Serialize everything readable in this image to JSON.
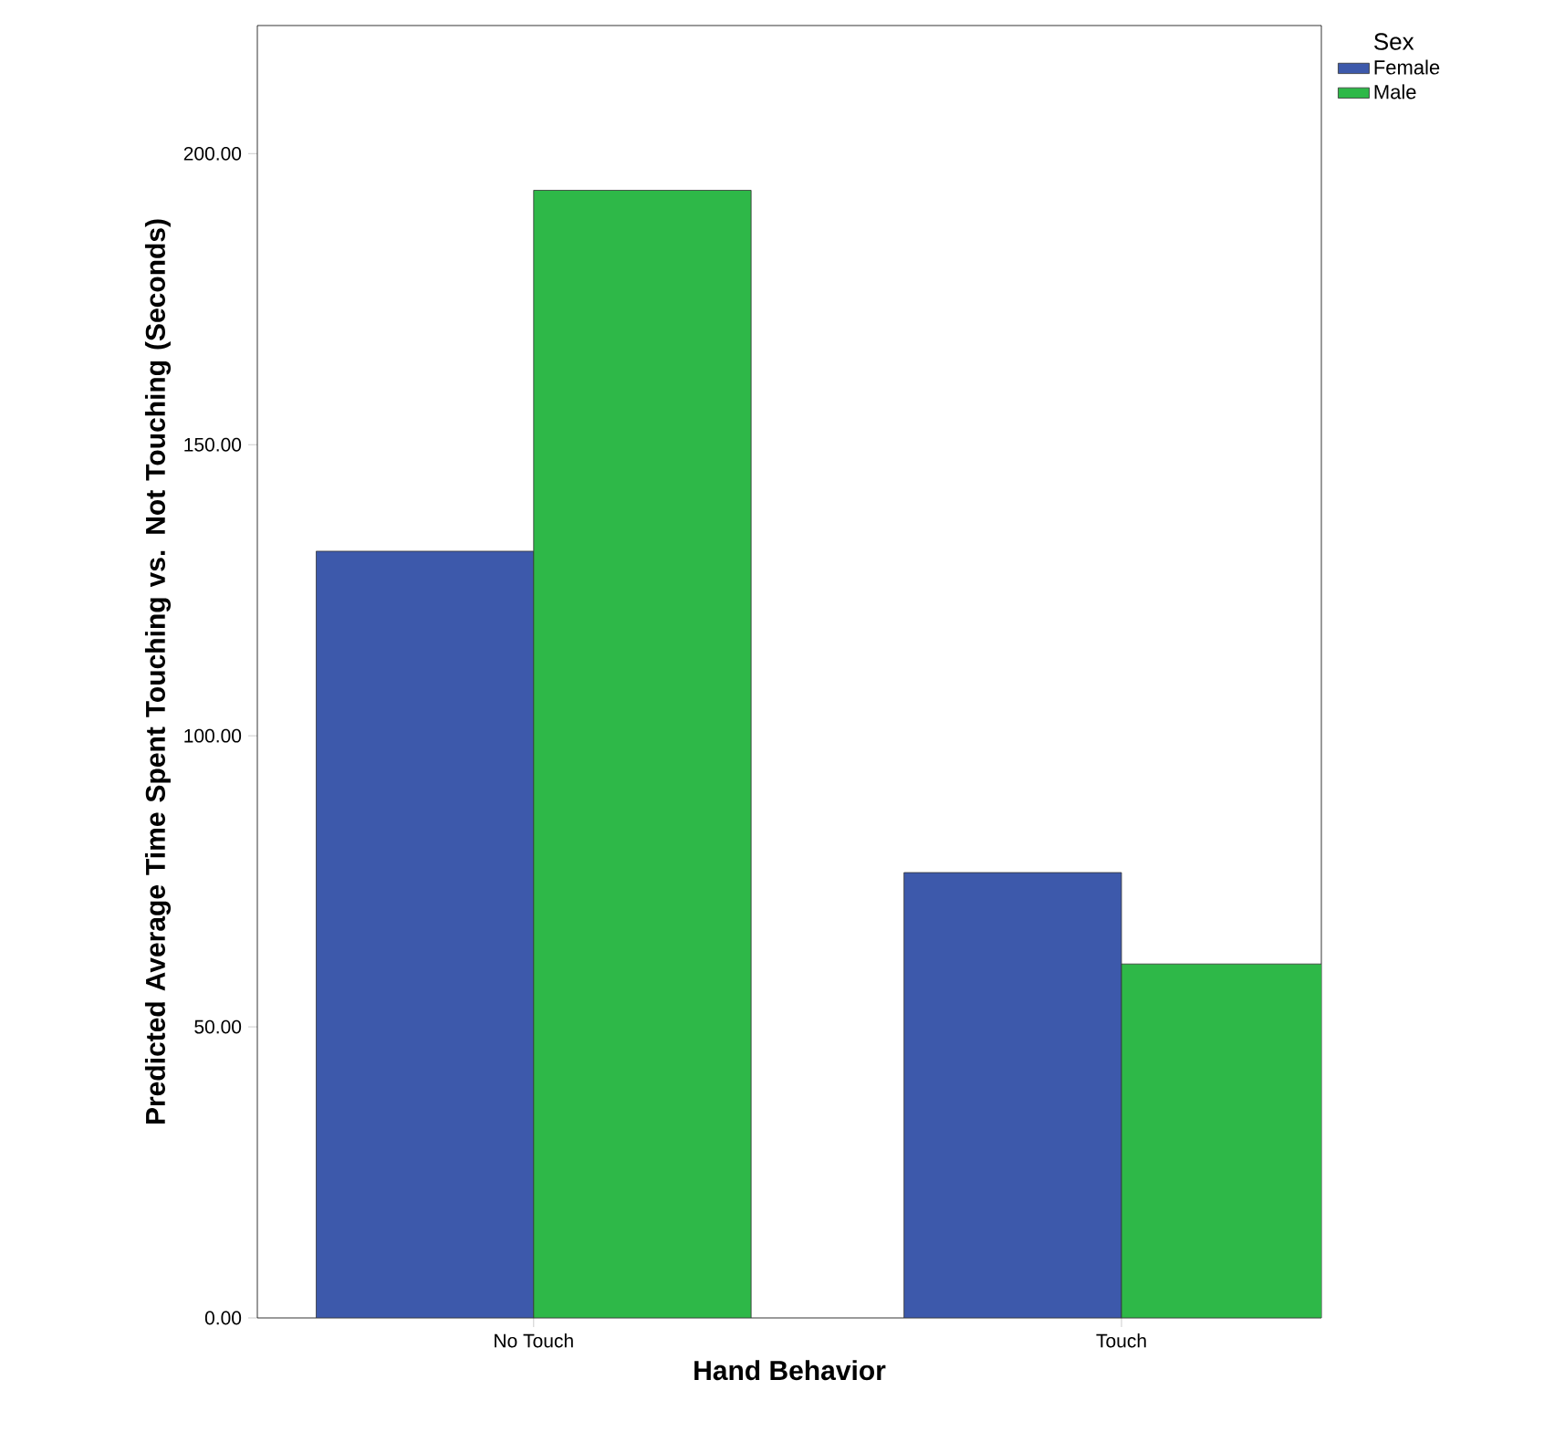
{
  "chart_data": {
    "type": "bar",
    "xlabel": "Hand Behavior",
    "ylabel": "Predicted Average Time Spent Touching vs. Not Touching (Seconds)",
    "legend_title": "Sex",
    "categories": [
      "No Touch",
      "Touch"
    ],
    "series": [
      {
        "name": "Female",
        "color": "#3d59ab",
        "values": [
          131.7,
          76.5
        ]
      },
      {
        "name": "Male",
        "color": "#2eb848",
        "values": [
          193.7,
          60.8
        ]
      }
    ],
    "ylim": [
      0,
      222
    ],
    "yticks": [
      {
        "value": 0,
        "label": "0.00"
      },
      {
        "value": 50,
        "label": "50.00"
      },
      {
        "value": 100,
        "label": "100.00"
      },
      {
        "value": 150,
        "label": "150.00"
      },
      {
        "value": 200,
        "label": "200.00"
      }
    ],
    "grid": false,
    "legend": "top right"
  }
}
